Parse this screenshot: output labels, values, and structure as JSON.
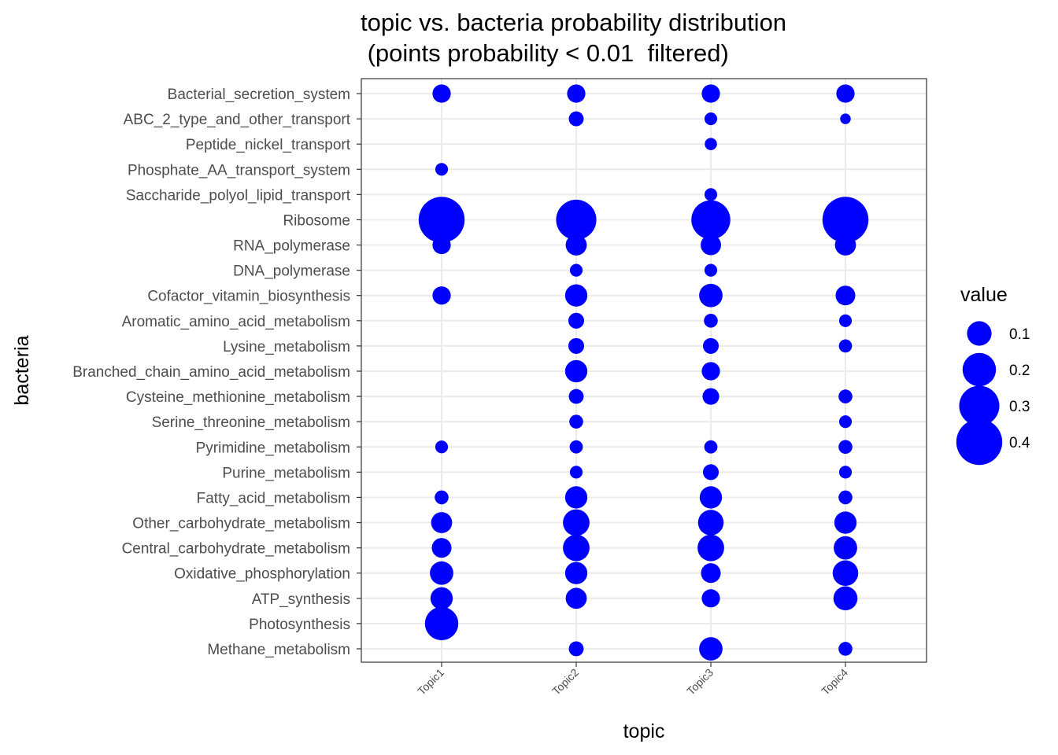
{
  "chart_data": {
    "type": "scatter",
    "title": "topic vs. bacteria probability distribution\n (points probability < 0.01  filtered)",
    "xlabel": "topic",
    "ylabel": "bacteria",
    "x_categories": [
      "Topic1",
      "Topic2",
      "Topic3",
      "Topic4"
    ],
    "y_categories": [
      "Bacterial_secretion_system",
      "ABC_2_type_and_other_transport",
      "Peptide_nickel_transport",
      "Phosphate_AA_transport_system",
      "Saccharide_polyol_lipid_transport",
      "Ribosome",
      "RNA_polymerase",
      "DNA_polymerase",
      "Cofactor_vitamin_biosynthesis",
      "Aromatic_amino_acid_metabolism",
      "Lysine_metabolism",
      "Branched_chain_amino_acid_metabolism",
      "Cysteine_methionine_metabolism",
      "Serine_threonine_metabolism",
      "Pyrimidine_metabolism",
      "Purine_metabolism",
      "Fatty_acid_metabolism",
      "Other_carbohydrate_metabolism",
      "Central_carbohydrate_metabolism",
      "Oxidative_phosphorylation",
      "ATP_synthesis",
      "Photosynthesis",
      "Methane_metabolism"
    ],
    "color": "#0000ff",
    "size_legend": {
      "title": "value",
      "values": [
        0.1,
        0.2,
        0.3,
        0.4
      ],
      "labels": [
        "0.1",
        "0.2",
        "0.3",
        "0.4"
      ]
    },
    "points": [
      {
        "bacteria": "Bacterial_secretion_system",
        "topic": "Topic1",
        "value": 0.05
      },
      {
        "bacteria": "Bacterial_secretion_system",
        "topic": "Topic2",
        "value": 0.05
      },
      {
        "bacteria": "Bacterial_secretion_system",
        "topic": "Topic3",
        "value": 0.05
      },
      {
        "bacteria": "Bacterial_secretion_system",
        "topic": "Topic4",
        "value": 0.05
      },
      {
        "bacteria": "ABC_2_type_and_other_transport",
        "topic": "Topic2",
        "value": 0.03
      },
      {
        "bacteria": "ABC_2_type_and_other_transport",
        "topic": "Topic3",
        "value": 0.02
      },
      {
        "bacteria": "ABC_2_type_and_other_transport",
        "topic": "Topic4",
        "value": 0.012
      },
      {
        "bacteria": "Peptide_nickel_transport",
        "topic": "Topic3",
        "value": 0.018
      },
      {
        "bacteria": "Phosphate_AA_transport_system",
        "topic": "Topic1",
        "value": 0.02
      },
      {
        "bacteria": "Saccharide_polyol_lipid_transport",
        "topic": "Topic3",
        "value": 0.02
      },
      {
        "bacteria": "Ribosome",
        "topic": "Topic1",
        "value": 0.4
      },
      {
        "bacteria": "Ribosome",
        "topic": "Topic2",
        "value": 0.3
      },
      {
        "bacteria": "Ribosome",
        "topic": "Topic3",
        "value": 0.28
      },
      {
        "bacteria": "Ribosome",
        "topic": "Topic4",
        "value": 0.4
      },
      {
        "bacteria": "RNA_polymerase",
        "topic": "Topic1",
        "value": 0.05
      },
      {
        "bacteria": "RNA_polymerase",
        "topic": "Topic2",
        "value": 0.07
      },
      {
        "bacteria": "RNA_polymerase",
        "topic": "Topic3",
        "value": 0.065
      },
      {
        "bacteria": "RNA_polymerase",
        "topic": "Topic4",
        "value": 0.07
      },
      {
        "bacteria": "DNA_polymerase",
        "topic": "Topic2",
        "value": 0.02
      },
      {
        "bacteria": "DNA_polymerase",
        "topic": "Topic3",
        "value": 0.02
      },
      {
        "bacteria": "Cofactor_vitamin_biosynthesis",
        "topic": "Topic1",
        "value": 0.05
      },
      {
        "bacteria": "Cofactor_vitamin_biosynthesis",
        "topic": "Topic2",
        "value": 0.08
      },
      {
        "bacteria": "Cofactor_vitamin_biosynthesis",
        "topic": "Topic3",
        "value": 0.09
      },
      {
        "bacteria": "Cofactor_vitamin_biosynthesis",
        "topic": "Topic4",
        "value": 0.06
      },
      {
        "bacteria": "Aromatic_amino_acid_metabolism",
        "topic": "Topic2",
        "value": 0.035
      },
      {
        "bacteria": "Aromatic_amino_acid_metabolism",
        "topic": "Topic3",
        "value": 0.025
      },
      {
        "bacteria": "Aromatic_amino_acid_metabolism",
        "topic": "Topic4",
        "value": 0.02
      },
      {
        "bacteria": "Lysine_metabolism",
        "topic": "Topic2",
        "value": 0.035
      },
      {
        "bacteria": "Lysine_metabolism",
        "topic": "Topic3",
        "value": 0.035
      },
      {
        "bacteria": "Lysine_metabolism",
        "topic": "Topic4",
        "value": 0.022
      },
      {
        "bacteria": "Branched_chain_amino_acid_metabolism",
        "topic": "Topic2",
        "value": 0.08
      },
      {
        "bacteria": "Branched_chain_amino_acid_metabolism",
        "topic": "Topic3",
        "value": 0.05
      },
      {
        "bacteria": "Cysteine_methionine_metabolism",
        "topic": "Topic2",
        "value": 0.03
      },
      {
        "bacteria": "Cysteine_methionine_metabolism",
        "topic": "Topic3",
        "value": 0.04
      },
      {
        "bacteria": "Cysteine_methionine_metabolism",
        "topic": "Topic4",
        "value": 0.025
      },
      {
        "bacteria": "Serine_threonine_metabolism",
        "topic": "Topic2",
        "value": 0.025
      },
      {
        "bacteria": "Serine_threonine_metabolism",
        "topic": "Topic4",
        "value": 0.02
      },
      {
        "bacteria": "Pyrimidine_metabolism",
        "topic": "Topic1",
        "value": 0.02
      },
      {
        "bacteria": "Pyrimidine_metabolism",
        "topic": "Topic2",
        "value": 0.022
      },
      {
        "bacteria": "Pyrimidine_metabolism",
        "topic": "Topic3",
        "value": 0.022
      },
      {
        "bacteria": "Pyrimidine_metabolism",
        "topic": "Topic4",
        "value": 0.025
      },
      {
        "bacteria": "Purine_metabolism",
        "topic": "Topic2",
        "value": 0.02
      },
      {
        "bacteria": "Purine_metabolism",
        "topic": "Topic3",
        "value": 0.035
      },
      {
        "bacteria": "Purine_metabolism",
        "topic": "Topic4",
        "value": 0.02
      },
      {
        "bacteria": "Fatty_acid_metabolism",
        "topic": "Topic1",
        "value": 0.025
      },
      {
        "bacteria": "Fatty_acid_metabolism",
        "topic": "Topic2",
        "value": 0.08
      },
      {
        "bacteria": "Fatty_acid_metabolism",
        "topic": "Topic3",
        "value": 0.08
      },
      {
        "bacteria": "Fatty_acid_metabolism",
        "topic": "Topic4",
        "value": 0.025
      },
      {
        "bacteria": "Other_carbohydrate_metabolism",
        "topic": "Topic1",
        "value": 0.07
      },
      {
        "bacteria": "Other_carbohydrate_metabolism",
        "topic": "Topic2",
        "value": 0.12
      },
      {
        "bacteria": "Other_carbohydrate_metabolism",
        "topic": "Topic3",
        "value": 0.11
      },
      {
        "bacteria": "Other_carbohydrate_metabolism",
        "topic": "Topic4",
        "value": 0.08
      },
      {
        "bacteria": "Central_carbohydrate_metabolism",
        "topic": "Topic1",
        "value": 0.06
      },
      {
        "bacteria": "Central_carbohydrate_metabolism",
        "topic": "Topic2",
        "value": 0.12
      },
      {
        "bacteria": "Central_carbohydrate_metabolism",
        "topic": "Topic3",
        "value": 0.12
      },
      {
        "bacteria": "Central_carbohydrate_metabolism",
        "topic": "Topic4",
        "value": 0.09
      },
      {
        "bacteria": "Oxidative_phosphorylation",
        "topic": "Topic1",
        "value": 0.09
      },
      {
        "bacteria": "Oxidative_phosphorylation",
        "topic": "Topic2",
        "value": 0.08
      },
      {
        "bacteria": "Oxidative_phosphorylation",
        "topic": "Topic3",
        "value": 0.06
      },
      {
        "bacteria": "Oxidative_phosphorylation",
        "topic": "Topic4",
        "value": 0.11
      },
      {
        "bacteria": "ATP_synthesis",
        "topic": "Topic1",
        "value": 0.08
      },
      {
        "bacteria": "ATP_synthesis",
        "topic": "Topic2",
        "value": 0.07
      },
      {
        "bacteria": "ATP_synthesis",
        "topic": "Topic3",
        "value": 0.05
      },
      {
        "bacteria": "ATP_synthesis",
        "topic": "Topic4",
        "value": 0.095
      },
      {
        "bacteria": "Photosynthesis",
        "topic": "Topic1",
        "value": 0.2
      },
      {
        "bacteria": "Methane_metabolism",
        "topic": "Topic2",
        "value": 0.03
      },
      {
        "bacteria": "Methane_metabolism",
        "topic": "Topic3",
        "value": 0.09
      },
      {
        "bacteria": "Methane_metabolism",
        "topic": "Topic4",
        "value": 0.025
      }
    ]
  }
}
